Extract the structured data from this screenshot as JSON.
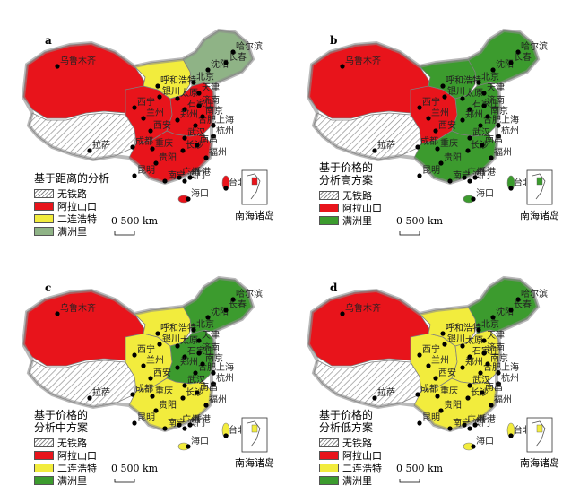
{
  "panels": [
    {
      "id": "a",
      "legend_title": [
        "基于距离的分析"
      ],
      "legend": [
        "无铁路",
        "阿拉山口",
        "二连浩特",
        "满洲里"
      ],
      "scale": "0   500 km",
      "scs_label": "南海诸岛",
      "regions": {
        "west": "red",
        "tibet": "hatch",
        "mid": "red",
        "north": "yellow",
        "east": "red",
        "south": "red",
        "northeast": "gray"
      },
      "cities": [
        "乌鲁木齐",
        "呼和浩特",
        "北京",
        "沈阳",
        "哈尔滨",
        "长春",
        "银川",
        "太原",
        "天津",
        "西宁",
        "兰州",
        "石家庄",
        "济南",
        "西安",
        "郑州",
        "合肥",
        "南京",
        "上海",
        "成都",
        "重庆",
        "武汉",
        "杭州",
        "拉萨",
        "贵阳",
        "长沙",
        "南昌",
        "福州",
        "昆明",
        "南宁",
        "广州",
        "澳门",
        "香港",
        "台北",
        "海口"
      ]
    },
    {
      "id": "b",
      "legend_title": [
        "基于价格的",
        "分析高方案"
      ],
      "legend": [
        "无铁路",
        "阿拉山口",
        "满洲里"
      ],
      "scale": "0   500 km",
      "scs_label": "南海诸岛",
      "regions": {
        "west": "red",
        "tibet": "hatch",
        "mid": "red",
        "north": "green",
        "east": "green",
        "south": "green",
        "northeast": "green"
      },
      "cities": [
        "乌鲁木齐",
        "呼和浩特",
        "北京",
        "沈阳",
        "哈尔滨",
        "长春",
        "银川",
        "太原",
        "天津",
        "西宁",
        "兰州",
        "石家庄",
        "济南",
        "西安",
        "郑州",
        "合肥",
        "南京",
        "上海",
        "成都",
        "重庆",
        "武汉",
        "杭州",
        "拉萨",
        "贵阳",
        "长沙",
        "南昌",
        "福州",
        "昆明",
        "南宁",
        "广州",
        "澳门",
        "香港",
        "台北",
        "海口"
      ]
    },
    {
      "id": "c",
      "legend_title": [
        "基于价格的",
        "分析中方案"
      ],
      "legend": [
        "无铁路",
        "阿拉山口",
        "二连浩特",
        "满洲里"
      ],
      "scale": "0   500 km",
      "scs_label": "南海诸岛",
      "regions": {
        "west": "red",
        "tibet": "hatch",
        "mid": "yellow",
        "north": "yellow",
        "east": "green",
        "south": "yellow",
        "northeast": "green"
      },
      "cities": [
        "乌鲁木齐",
        "呼和浩特",
        "北京",
        "沈阳",
        "哈尔滨",
        "长春",
        "银川",
        "太原",
        "天津",
        "西宁",
        "兰州",
        "石家庄",
        "济南",
        "西安",
        "郑州",
        "合肥",
        "南京",
        "上海",
        "成都",
        "重庆",
        "武汉",
        "杭州",
        "拉萨",
        "贵阳",
        "长沙",
        "南昌",
        "福州",
        "昆明",
        "南宁",
        "广州",
        "澳门",
        "香港",
        "台北",
        "海口"
      ]
    },
    {
      "id": "d",
      "legend_title": [
        "基于价格的",
        "分析低方案"
      ],
      "legend": [
        "无铁路",
        "阿拉山口",
        "二连浩特",
        "满洲里"
      ],
      "scale": "0   500 km",
      "scs_label": "南海诸岛",
      "regions": {
        "west": "red",
        "tibet": "hatch",
        "mid": "yellow",
        "north": "yellow",
        "east": "yellow",
        "south": "yellow",
        "northeast": "green"
      },
      "cities": [
        "乌鲁木齐",
        "呼和浩特",
        "北京",
        "沈阳",
        "哈尔滨",
        "长春",
        "银川",
        "太原",
        "天津",
        "西宁",
        "兰州",
        "石家庄",
        "济南",
        "西安",
        "郑州",
        "合肥",
        "南京",
        "上海",
        "成都",
        "重庆",
        "武汉",
        "杭州",
        "拉萨",
        "贵阳",
        "长沙",
        "南昌",
        "福州",
        "昆明",
        "南宁",
        "广州",
        "澳门",
        "香港",
        "台北",
        "海口"
      ]
    }
  ],
  "colors": {
    "red": "#e8141b",
    "yellow": "#f2ec3d",
    "green": "#3c9b2e",
    "gray": "#8fb386",
    "hatch": "#ffffff",
    "border": "#7f7f7f"
  }
}
